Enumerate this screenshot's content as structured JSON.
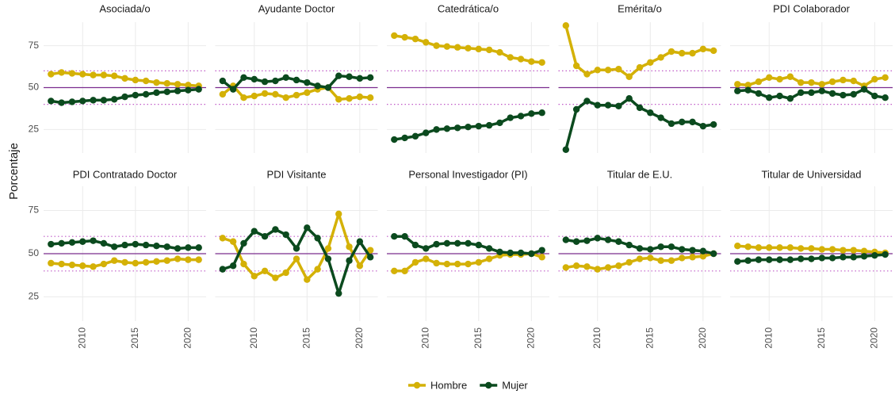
{
  "ylabel": "Porcentaje",
  "legend": "bottom",
  "chart_data": [
    {
      "type": "line",
      "title": "Asociada/o",
      "x": [
        2007,
        2008,
        2009,
        2010,
        2011,
        2012,
        2013,
        2014,
        2015,
        2016,
        2017,
        2018,
        2019,
        2020,
        2021
      ],
      "xlim": [
        2006.3,
        2021.7
      ],
      "xticks": [
        2010,
        2015,
        2020
      ],
      "ylim": [
        11,
        89
      ],
      "yticks": [
        25,
        50,
        75
      ],
      "grid": true,
      "hlines": [
        {
          "value": 50,
          "style": "solid",
          "color": "#7b2d8e"
        },
        {
          "value": 40,
          "style": "dotted",
          "color": "#c05cc8"
        },
        {
          "value": 60,
          "style": "dotted",
          "color": "#c05cc8"
        }
      ],
      "series": [
        {
          "name": "Hombre",
          "color": "#d4b106",
          "values": [
            58,
            59,
            58.5,
            58,
            57.5,
            57.5,
            57,
            55.5,
            54.5,
            54,
            53,
            52.5,
            52,
            51.5,
            51
          ]
        },
        {
          "name": "Mujer",
          "color": "#0b4a1e",
          "values": [
            42,
            41,
            41.5,
            42,
            42.5,
            42.5,
            43,
            44.5,
            45.5,
            46,
            47,
            47.5,
            48,
            48.5,
            49
          ]
        }
      ]
    },
    {
      "type": "line",
      "title": "Ayudante Doctor",
      "x": [
        2007,
        2008,
        2009,
        2010,
        2011,
        2012,
        2013,
        2014,
        2015,
        2016,
        2017,
        2018,
        2019,
        2020,
        2021
      ],
      "xlim": [
        2006.3,
        2021.7
      ],
      "xticks": [
        2010,
        2015,
        2020
      ],
      "ylim": [
        11,
        89
      ],
      "yticks": [
        25,
        50,
        75
      ],
      "grid": true,
      "hlines": [
        {
          "value": 50,
          "style": "solid",
          "color": "#7b2d8e"
        },
        {
          "value": 40,
          "style": "dotted",
          "color": "#c05cc8"
        },
        {
          "value": 60,
          "style": "dotted",
          "color": "#c05cc8"
        }
      ],
      "series": [
        {
          "name": "Hombre",
          "color": "#d4b106",
          "values": [
            46,
            51,
            44,
            45,
            46.5,
            46,
            44,
            45.5,
            47,
            49,
            50,
            43,
            43.5,
            44.5,
            44
          ]
        },
        {
          "name": "Mujer",
          "color": "#0b4a1e",
          "values": [
            54,
            49,
            56,
            55,
            53.5,
            54,
            56,
            54.5,
            53,
            51,
            50,
            57,
            56.5,
            55.5,
            56
          ]
        }
      ]
    },
    {
      "type": "line",
      "title": "Catedrática/o",
      "x": [
        2007,
        2008,
        2009,
        2010,
        2011,
        2012,
        2013,
        2014,
        2015,
        2016,
        2017,
        2018,
        2019,
        2020,
        2021
      ],
      "xlim": [
        2006.3,
        2021.7
      ],
      "xticks": [
        2010,
        2015,
        2020
      ],
      "ylim": [
        11,
        89
      ],
      "yticks": [
        25,
        50,
        75
      ],
      "grid": true,
      "hlines": [
        {
          "value": 50,
          "style": "solid",
          "color": "#7b2d8e"
        },
        {
          "value": 40,
          "style": "dotted",
          "color": "#c05cc8"
        },
        {
          "value": 60,
          "style": "dotted",
          "color": "#c05cc8"
        }
      ],
      "series": [
        {
          "name": "Hombre",
          "color": "#d4b106",
          "values": [
            81,
            80,
            79,
            77,
            75,
            74.5,
            74,
            73.5,
            73,
            72.5,
            71,
            68,
            67,
            65.5,
            65
          ]
        },
        {
          "name": "Mujer",
          "color": "#0b4a1e",
          "values": [
            19,
            20,
            21,
            23,
            25,
            25.5,
            26,
            26.5,
            27,
            27.5,
            29,
            32,
            33,
            34.5,
            35
          ]
        }
      ]
    },
    {
      "type": "line",
      "title": "Emérita/o",
      "x": [
        2007,
        2008,
        2009,
        2010,
        2011,
        2012,
        2013,
        2014,
        2015,
        2016,
        2017,
        2018,
        2019,
        2020,
        2021
      ],
      "xlim": [
        2006.3,
        2021.7
      ],
      "xticks": [
        2010,
        2015,
        2020
      ],
      "ylim": [
        11,
        89
      ],
      "yticks": [
        25,
        50,
        75
      ],
      "grid": true,
      "hlines": [
        {
          "value": 50,
          "style": "solid",
          "color": "#7b2d8e"
        },
        {
          "value": 40,
          "style": "dotted",
          "color": "#c05cc8"
        },
        {
          "value": 60,
          "style": "dotted",
          "color": "#c05cc8"
        }
      ],
      "series": [
        {
          "name": "Hombre",
          "color": "#d4b106",
          "values": [
            87,
            63,
            58,
            60.5,
            60.5,
            61,
            56.5,
            62,
            65,
            68,
            71.5,
            70.5,
            70.5,
            73,
            72
          ]
        },
        {
          "name": "Mujer",
          "color": "#0b4a1e",
          "values": [
            13,
            37,
            42,
            39.5,
            39.5,
            39,
            43.5,
            38,
            35,
            32,
            28.5,
            29.5,
            29.5,
            27,
            28
          ]
        }
      ]
    },
    {
      "type": "line",
      "title": "PDI Colaborador",
      "x": [
        2007,
        2008,
        2009,
        2010,
        2011,
        2012,
        2013,
        2014,
        2015,
        2016,
        2017,
        2018,
        2019,
        2020,
        2021
      ],
      "xlim": [
        2006.3,
        2021.7
      ],
      "xticks": [
        2010,
        2015,
        2020
      ],
      "ylim": [
        11,
        89
      ],
      "yticks": [
        25,
        50,
        75
      ],
      "grid": true,
      "hlines": [
        {
          "value": 50,
          "style": "solid",
          "color": "#7b2d8e"
        },
        {
          "value": 40,
          "style": "dotted",
          "color": "#c05cc8"
        },
        {
          "value": 60,
          "style": "dotted",
          "color": "#c05cc8"
        }
      ],
      "series": [
        {
          "name": "Hombre",
          "color": "#d4b106",
          "values": [
            52,
            51.5,
            53.5,
            56,
            55,
            56.5,
            53,
            53,
            52,
            53.5,
            54.5,
            54,
            51,
            55,
            56
          ]
        },
        {
          "name": "Mujer",
          "color": "#0b4a1e",
          "values": [
            48,
            48.5,
            46.5,
            44,
            45,
            43.5,
            47,
            47,
            48,
            46.5,
            45.5,
            46,
            49,
            45,
            44
          ]
        }
      ]
    },
    {
      "type": "line",
      "title": "PDI Contratado Doctor",
      "x": [
        2007,
        2008,
        2009,
        2010,
        2011,
        2012,
        2013,
        2014,
        2015,
        2016,
        2017,
        2018,
        2019,
        2020,
        2021
      ],
      "xlim": [
        2006.3,
        2021.7
      ],
      "xticks": [
        2010,
        2015,
        2020
      ],
      "ylim": [
        11,
        89
      ],
      "yticks": [
        25,
        50,
        75
      ],
      "grid": true,
      "hlines": [
        {
          "value": 50,
          "style": "solid",
          "color": "#7b2d8e"
        },
        {
          "value": 40,
          "style": "dotted",
          "color": "#c05cc8"
        },
        {
          "value": 60,
          "style": "dotted",
          "color": "#c05cc8"
        }
      ],
      "series": [
        {
          "name": "Hombre",
          "color": "#d4b106",
          "values": [
            44.5,
            44,
            43.5,
            43,
            42.5,
            44,
            46,
            45,
            44.5,
            45,
            45.5,
            46,
            47,
            46.5,
            46.5
          ]
        },
        {
          "name": "Mujer",
          "color": "#0b4a1e",
          "values": [
            55.5,
            56,
            56.5,
            57,
            57.5,
            56,
            54,
            55,
            55.5,
            55,
            54.5,
            54,
            53,
            53.5,
            53.5
          ]
        }
      ]
    },
    {
      "type": "line",
      "title": "PDI Visitante",
      "x": [
        2007,
        2008,
        2009,
        2010,
        2011,
        2012,
        2013,
        2014,
        2015,
        2016,
        2017,
        2018,
        2019,
        2020,
        2021
      ],
      "xlim": [
        2006.3,
        2021.7
      ],
      "xticks": [
        2010,
        2015,
        2020
      ],
      "ylim": [
        11,
        89
      ],
      "yticks": [
        25,
        50,
        75
      ],
      "grid": true,
      "hlines": [
        {
          "value": 50,
          "style": "solid",
          "color": "#7b2d8e"
        },
        {
          "value": 40,
          "style": "dotted",
          "color": "#c05cc8"
        },
        {
          "value": 60,
          "style": "dotted",
          "color": "#c05cc8"
        }
      ],
      "series": [
        {
          "name": "Hombre",
          "color": "#d4b106",
          "values": [
            59,
            57,
            44,
            37,
            40,
            36,
            39,
            47,
            35,
            41,
            53,
            73,
            54,
            43,
            52
          ]
        },
        {
          "name": "Mujer",
          "color": "#0b4a1e",
          "values": [
            41,
            43,
            56,
            63,
            60,
            64,
            61,
            53,
            65,
            59,
            47,
            27,
            46,
            57,
            48
          ]
        }
      ]
    },
    {
      "type": "line",
      "title": "Personal Investigador (PI)",
      "x": [
        2007,
        2008,
        2009,
        2010,
        2011,
        2012,
        2013,
        2014,
        2015,
        2016,
        2017,
        2018,
        2019,
        2020,
        2021
      ],
      "xlim": [
        2006.3,
        2021.7
      ],
      "xticks": [
        2010,
        2015,
        2020
      ],
      "ylim": [
        11,
        89
      ],
      "yticks": [
        25,
        50,
        75
      ],
      "grid": true,
      "hlines": [
        {
          "value": 50,
          "style": "solid",
          "color": "#7b2d8e"
        },
        {
          "value": 40,
          "style": "dotted",
          "color": "#c05cc8"
        },
        {
          "value": 60,
          "style": "dotted",
          "color": "#c05cc8"
        }
      ],
      "series": [
        {
          "name": "Hombre",
          "color": "#d4b106",
          "values": [
            40,
            40,
            45,
            47,
            44.5,
            44,
            44,
            44,
            45,
            47,
            49,
            49.5,
            49.5,
            50,
            48
          ]
        },
        {
          "name": "Mujer",
          "color": "#0b4a1e",
          "values": [
            60,
            60,
            55,
            53,
            55.5,
            56,
            56,
            56,
            55,
            53,
            51,
            50.5,
            50.5,
            50,
            52
          ]
        }
      ]
    },
    {
      "type": "line",
      "title": "Titular de E.U.",
      "x": [
        2007,
        2008,
        2009,
        2010,
        2011,
        2012,
        2013,
        2014,
        2015,
        2016,
        2017,
        2018,
        2019,
        2020,
        2021
      ],
      "xlim": [
        2006.3,
        2021.7
      ],
      "xticks": [
        2010,
        2015,
        2020
      ],
      "ylim": [
        11,
        89
      ],
      "yticks": [
        25,
        50,
        75
      ],
      "grid": true,
      "hlines": [
        {
          "value": 50,
          "style": "solid",
          "color": "#7b2d8e"
        },
        {
          "value": 40,
          "style": "dotted",
          "color": "#c05cc8"
        },
        {
          "value": 60,
          "style": "dotted",
          "color": "#c05cc8"
        }
      ],
      "series": [
        {
          "name": "Hombre",
          "color": "#d4b106",
          "values": [
            42,
            43,
            42.5,
            41,
            42,
            43,
            45,
            47,
            47.5,
            46,
            46,
            47.5,
            48,
            48.5,
            50
          ]
        },
        {
          "name": "Mujer",
          "color": "#0b4a1e",
          "values": [
            58,
            57,
            57.5,
            59,
            58,
            57,
            55,
            53,
            52.5,
            54,
            54,
            52.5,
            52,
            51.5,
            50
          ]
        }
      ]
    },
    {
      "type": "line",
      "title": "Titular de Universidad",
      "x": [
        2007,
        2008,
        2009,
        2010,
        2011,
        2012,
        2013,
        2014,
        2015,
        2016,
        2017,
        2018,
        2019,
        2020,
        2021
      ],
      "xlim": [
        2006.3,
        2021.7
      ],
      "xticks": [
        2010,
        2015,
        2020
      ],
      "ylim": [
        11,
        89
      ],
      "yticks": [
        25,
        50,
        75
      ],
      "grid": true,
      "hlines": [
        {
          "value": 50,
          "style": "solid",
          "color": "#7b2d8e"
        },
        {
          "value": 40,
          "style": "dotted",
          "color": "#c05cc8"
        },
        {
          "value": 60,
          "style": "dotted",
          "color": "#c05cc8"
        }
      ],
      "series": [
        {
          "name": "Hombre",
          "color": "#d4b106",
          "values": [
            54.5,
            54,
            53.5,
            53.5,
            53.5,
            53.5,
            53,
            53,
            52.5,
            52.5,
            52,
            52,
            51.5,
            51,
            50.5
          ]
        },
        {
          "name": "Mujer",
          "color": "#0b4a1e",
          "values": [
            45.5,
            46,
            46.5,
            46.5,
            46.5,
            46.5,
            47,
            47,
            47.5,
            47.5,
            48,
            48,
            48.5,
            49,
            49.5
          ]
        }
      ]
    }
  ]
}
